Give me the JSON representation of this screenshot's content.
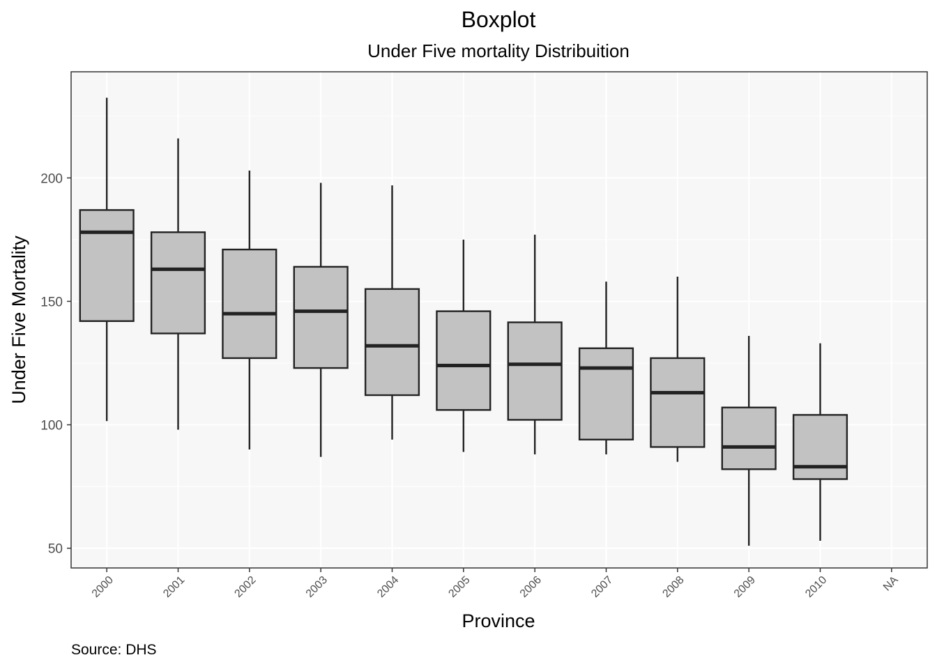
{
  "chart_data": {
    "type": "boxplot",
    "title": "Boxplot",
    "subtitle": "Under Five mortality Distribuition",
    "xlabel": "Province",
    "ylabel": "Under Five Mortality",
    "caption": "Source: DHS",
    "categories": [
      "2000",
      "2001",
      "2002",
      "2003",
      "2004",
      "2005",
      "2006",
      "2007",
      "2008",
      "2009",
      "2010",
      "NA"
    ],
    "boxes": [
      {
        "category": "2000",
        "min": 101.5,
        "q1": 142,
        "median": 178,
        "q3": 187,
        "max": 232.5
      },
      {
        "category": "2001",
        "min": 98,
        "q1": 137,
        "median": 163,
        "q3": 178,
        "max": 216
      },
      {
        "category": "2002",
        "min": 90,
        "q1": 127,
        "median": 145,
        "q3": 171,
        "max": 203
      },
      {
        "category": "2003",
        "min": 87,
        "q1": 123,
        "median": 146,
        "q3": 164,
        "max": 198
      },
      {
        "category": "2004",
        "min": 94,
        "q1": 112,
        "median": 132,
        "q3": 155,
        "max": 197
      },
      {
        "category": "2005",
        "min": 89,
        "q1": 106,
        "median": 124,
        "q3": 146,
        "max": 175
      },
      {
        "category": "2006",
        "min": 88,
        "q1": 102,
        "median": 124.5,
        "q3": 141.5,
        "max": 177
      },
      {
        "category": "2007",
        "min": 88,
        "q1": 94,
        "median": 123,
        "q3": 131,
        "max": 158
      },
      {
        "category": "2008",
        "min": 85,
        "q1": 91,
        "median": 113,
        "q3": 127,
        "max": 160
      },
      {
        "category": "2009",
        "min": 51,
        "q1": 82,
        "median": 91,
        "q3": 107,
        "max": 136
      },
      {
        "category": "2010",
        "min": 53,
        "q1": 78,
        "median": 83,
        "q3": 104,
        "max": 133
      }
    ],
    "yticks": [
      50,
      100,
      150,
      200
    ],
    "ylim": [
      42,
      243
    ],
    "grid": true,
    "colors": {
      "panel_background": "#f7f7f7",
      "grid": "#ffffff",
      "box_fill": "#c2c2c2",
      "box_stroke": "#222222",
      "border": "#333333"
    }
  }
}
